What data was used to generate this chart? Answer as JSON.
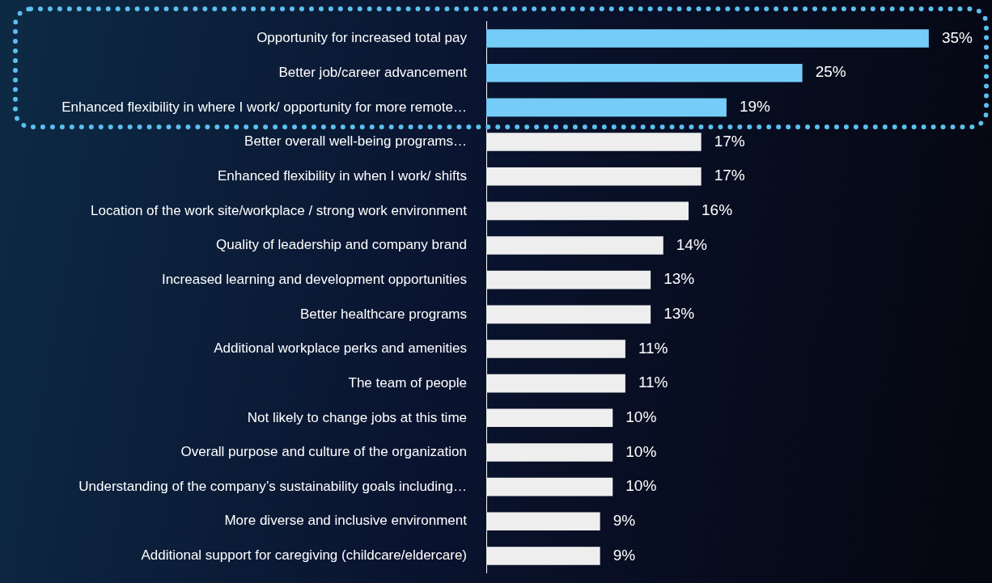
{
  "chart_data": {
    "type": "bar",
    "orientation": "horizontal",
    "xlim": [
      0,
      40
    ],
    "categories": [
      "Opportunity for increased total pay",
      "Better job/career advancement",
      "Enhanced flexibility in where I work/ opportunity for more remote…",
      "Better overall well-being programs…",
      "Enhanced flexibility in when I work/ shifts",
      "Location of the work site/workplace / strong work environment",
      "Quality of leadership and company brand",
      "Increased learning and development opportunities",
      "Better healthcare programs",
      "Additional workplace perks and amenities",
      "The team of people",
      "Not likely to change jobs at this time",
      "Overall purpose and culture of the organization",
      "Understanding of the company’s sustainability goals including…",
      "More diverse and inclusive environment",
      "Additional support for caregiving (childcare/eldercare)"
    ],
    "values": [
      35,
      25,
      19,
      17,
      17,
      16,
      14,
      13,
      13,
      11,
      11,
      10,
      10,
      10,
      9,
      9
    ],
    "value_labels": [
      "35%",
      "25%",
      "19%",
      "17%",
      "17%",
      "16%",
      "14%",
      "13%",
      "13%",
      "11%",
      "11%",
      "10%",
      "10%",
      "10%",
      "9%",
      "9%"
    ],
    "colors": [
      "#75cdf7",
      "#75cdf7",
      "#75cdf7",
      "#eeeeee",
      "#eeeeee",
      "#eeeeee",
      "#eeeeee",
      "#eeeeee",
      "#eeeeee",
      "#eeeeee",
      "#eeeeee",
      "#eeeeee",
      "#eeeeee",
      "#eeeeee",
      "#eeeeee",
      "#eeeeee"
    ]
  }
}
